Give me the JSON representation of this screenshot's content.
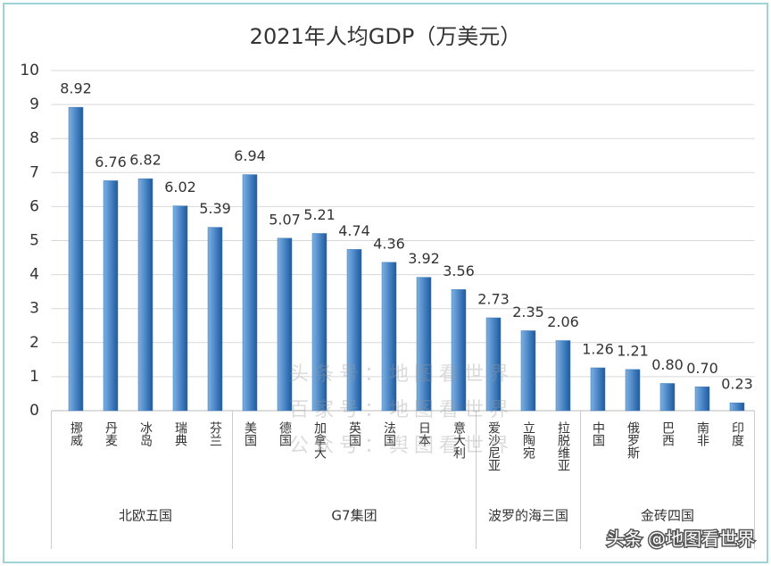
{
  "chart_data": {
    "type": "bar",
    "title": "2021年人均GDP（万美元）",
    "categories": [
      "挪威",
      "丹麦",
      "冰岛",
      "瑞典",
      "芬兰",
      "美国",
      "德国",
      "加拿大",
      "英国",
      "法国",
      "日本",
      "意大利",
      "爱沙尼亚",
      "立陶宛",
      "拉脱维亚",
      "中国",
      "俄罗斯",
      "巴西",
      "南非",
      "印度"
    ],
    "category_groups": [
      "北欧五国",
      "北欧五国",
      "北欧五国",
      "北欧五国",
      "北欧五国",
      "G7集团",
      "G7集团",
      "G7集团",
      "G7集团",
      "G7集团",
      "G7集团",
      "G7集团",
      "波罗的海三国",
      "波罗的海三国",
      "波罗的海三国",
      "金砖四国",
      "金砖四国",
      "金砖四国",
      "金砖四国",
      "金砖四国"
    ],
    "values": [
      8.92,
      6.76,
      6.82,
      6.02,
      5.39,
      6.94,
      5.07,
      5.21,
      4.74,
      4.36,
      3.92,
      3.56,
      2.73,
      2.35,
      2.06,
      1.26,
      1.21,
      0.8,
      0.7,
      0.23
    ],
    "value_labels": [
      "8.92",
      "6.76",
      "6.82",
      "6.02",
      "5.39",
      "6.94",
      "5.07",
      "5.21",
      "4.74",
      "4.36",
      "3.92",
      "3.56",
      "2.73",
      "2.35",
      "2.06",
      "1.26",
      "1.21",
      "0.80",
      "0.70",
      "0.23"
    ],
    "color": "#3a78b8",
    "ylim": [
      0,
      10
    ],
    "yticks": [
      0,
      1,
      2,
      3,
      4,
      5,
      6,
      7,
      8,
      9,
      10
    ],
    "grid": true,
    "watermarks": [
      "头条号：地图看世界",
      "百家号：地图看世界",
      "公众号：舆图看世界"
    ],
    "footer": "头条 @地图看世界"
  }
}
